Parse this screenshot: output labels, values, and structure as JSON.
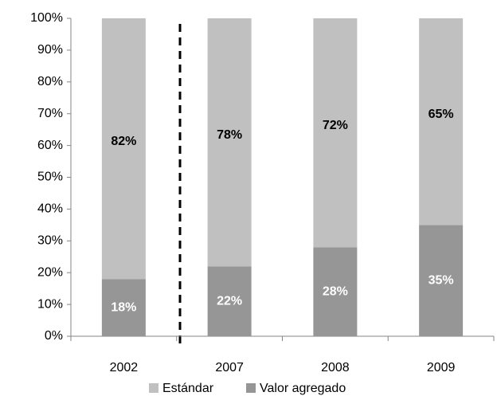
{
  "chart_data": {
    "type": "stacked_bar",
    "categories": [
      "2002",
      "2007",
      "2008",
      "2009"
    ],
    "series": [
      {
        "name": "Valor agregado",
        "color": "#969696",
        "label_color": "#ffffff",
        "values": [
          18,
          22,
          28,
          35
        ],
        "value_labels": [
          "18%",
          "22%",
          "28%",
          "35%"
        ]
      },
      {
        "name": "Estándar",
        "color": "#c0c0c0",
        "label_color": "#000000",
        "values": [
          82,
          78,
          72,
          65
        ],
        "value_labels": [
          "82%",
          "78%",
          "72%",
          "65%"
        ]
      }
    ],
    "ylim": [
      0,
      100
    ],
    "yticks": [
      {
        "value": 0,
        "label": "0%"
      },
      {
        "value": 10,
        "label": "10%"
      },
      {
        "value": 20,
        "label": "20%"
      },
      {
        "value": 30,
        "label": "30%"
      },
      {
        "value": 40,
        "label": "40%"
      },
      {
        "value": 50,
        "label": "50%"
      },
      {
        "value": 60,
        "label": "60%"
      },
      {
        "value": 70,
        "label": "70%"
      },
      {
        "value": 80,
        "label": "80%"
      },
      {
        "value": 90,
        "label": "90%"
      },
      {
        "value": 100,
        "label": "100%"
      }
    ],
    "legend": "bottom"
  }
}
